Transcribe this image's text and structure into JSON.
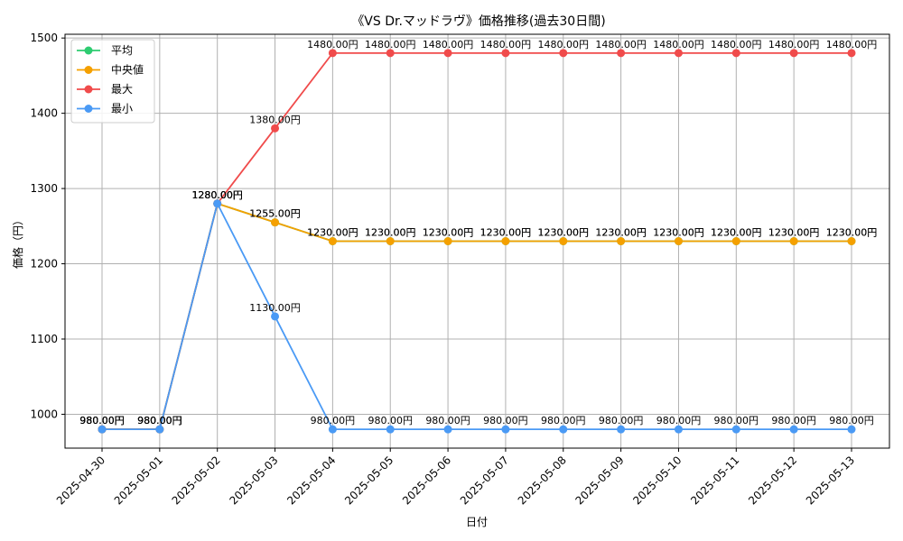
{
  "chart_data": {
    "type": "line",
    "title": "《VS Dr.マッドラヴ》価格推移(過去30日間)",
    "xlabel": "日付",
    "ylabel": "価格（円）",
    "categories": [
      "2025-04-30",
      "2025-05-01",
      "2025-05-02",
      "2025-05-03",
      "2025-05-04",
      "2025-05-05",
      "2025-05-06",
      "2025-05-07",
      "2025-05-08",
      "2025-05-09",
      "2025-05-10",
      "2025-05-11",
      "2025-05-12",
      "2025-05-13"
    ],
    "ylim": [
      955,
      1505
    ],
    "yticks": [
      1000,
      1100,
      1200,
      1300,
      1400,
      1500
    ],
    "grid": true,
    "legend_position": "top-left",
    "label_suffix": "円",
    "series": [
      {
        "name": "平均",
        "color": "#2ecc71",
        "values": [
          980,
          980,
          1280,
          1255,
          1230,
          1230,
          1230,
          1230,
          1230,
          1230,
          1230,
          1230,
          1230,
          1230
        ]
      },
      {
        "name": "中央値",
        "color": "#f5a000",
        "values": [
          980,
          980,
          1280,
          1255,
          1230,
          1230,
          1230,
          1230,
          1230,
          1230,
          1230,
          1230,
          1230,
          1230
        ]
      },
      {
        "name": "最大",
        "color": "#f04b4b",
        "values": [
          980,
          980,
          1280,
          1380,
          1480,
          1480,
          1480,
          1480,
          1480,
          1480,
          1480,
          1480,
          1480,
          1480
        ]
      },
      {
        "name": "最小",
        "color": "#4a9af5",
        "values": [
          980,
          980,
          1280,
          1130,
          980,
          980,
          980,
          980,
          980,
          980,
          980,
          980,
          980,
          980
        ]
      }
    ]
  }
}
